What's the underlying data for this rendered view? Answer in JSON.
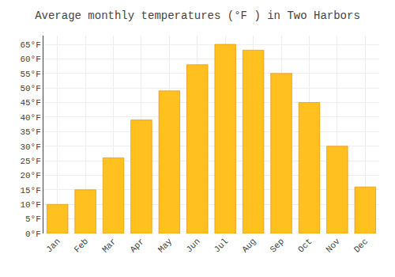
{
  "chart_data": {
    "type": "bar",
    "title": "Average monthly temperatures (°F ) in Two Harbors",
    "categories": [
      "Jan",
      "Feb",
      "Mar",
      "Apr",
      "May",
      "Jun",
      "Jul",
      "Aug",
      "Sep",
      "Oct",
      "Nov",
      "Dec"
    ],
    "values": [
      10,
      15,
      26,
      39,
      49,
      58,
      65,
      63,
      55,
      45,
      30,
      16
    ],
    "color": "#FFC020",
    "ylim": [
      0,
      68
    ],
    "yticks": [
      {
        "value": 0,
        "label": "0°F"
      },
      {
        "value": 5,
        "label": "5°F"
      },
      {
        "value": 10,
        "label": "10°F"
      },
      {
        "value": 15,
        "label": "15°F"
      },
      {
        "value": 20,
        "label": "20°F"
      },
      {
        "value": 25,
        "label": "25°F"
      },
      {
        "value": 30,
        "label": "30°F"
      },
      {
        "value": 35,
        "label": "35°F"
      },
      {
        "value": 40,
        "label": "40°F"
      },
      {
        "value": 45,
        "label": "45°F"
      },
      {
        "value": 50,
        "label": "50°F"
      },
      {
        "value": 55,
        "label": "55°F"
      },
      {
        "value": 60,
        "label": "60°F"
      },
      {
        "value": 65,
        "label": "65°F"
      }
    ],
    "grid": true
  }
}
